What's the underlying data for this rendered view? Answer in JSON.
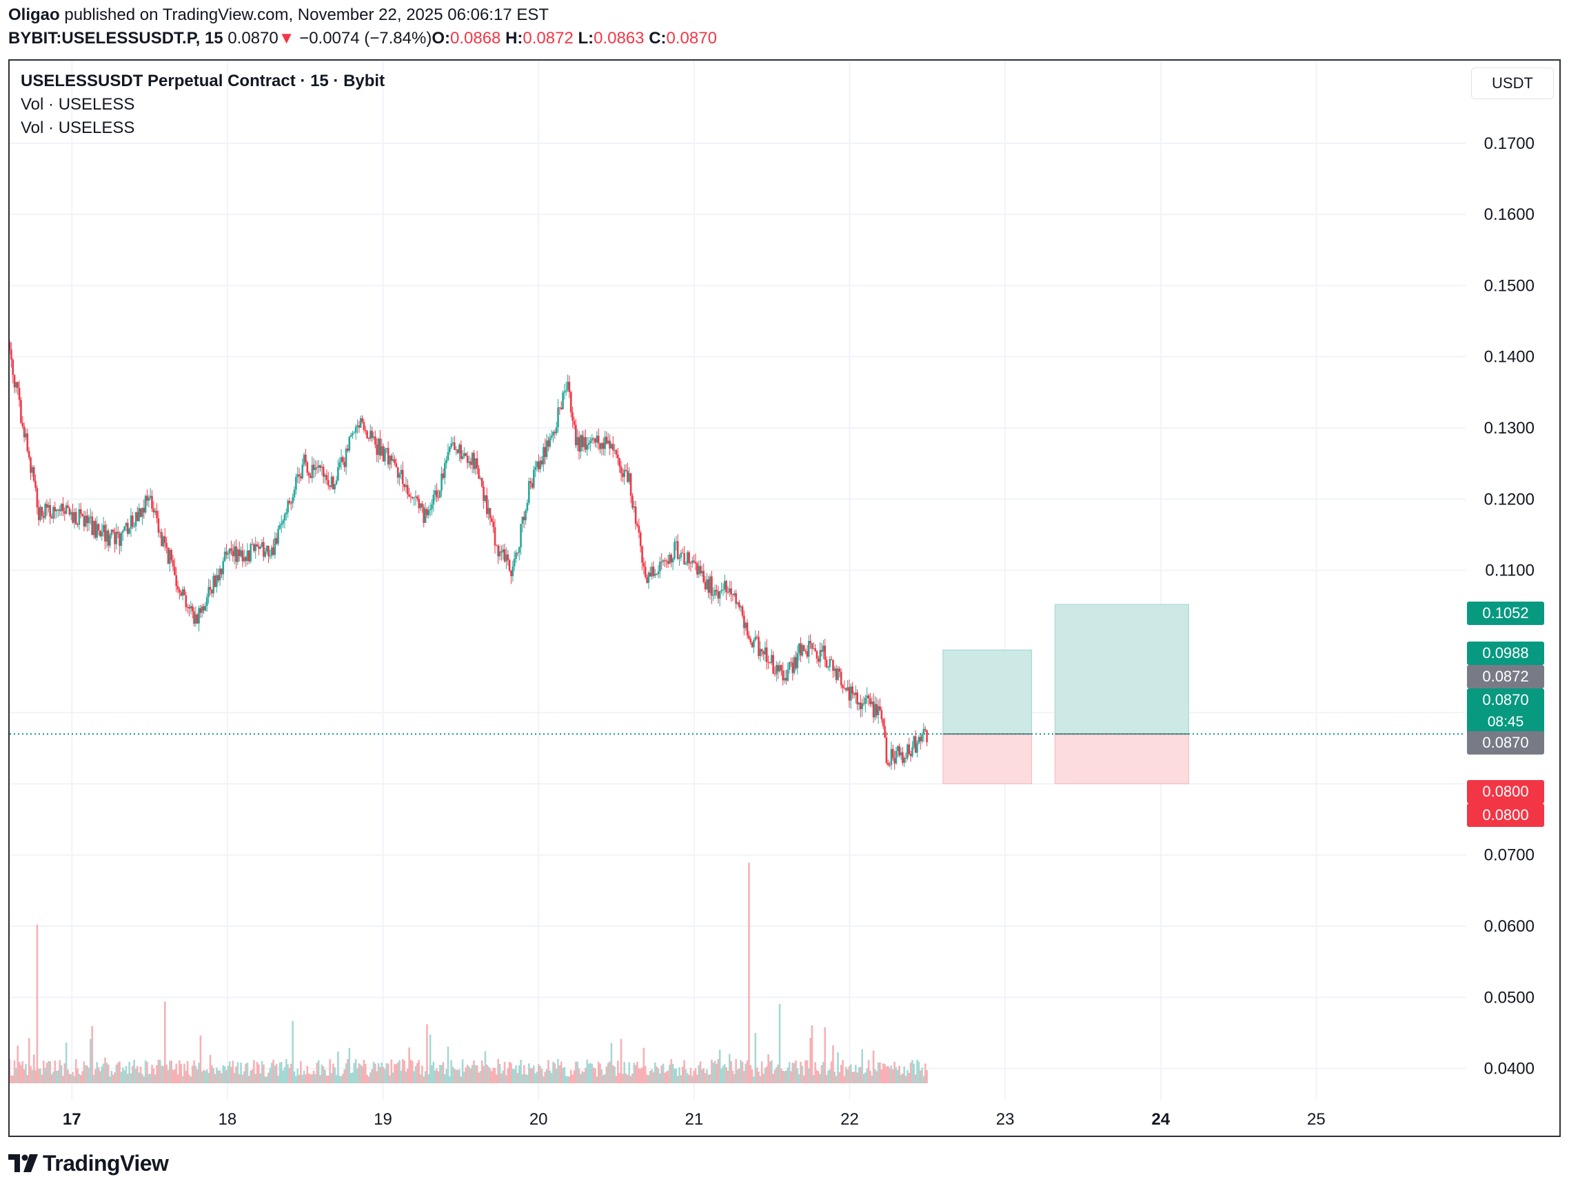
{
  "header": {
    "author": "Oligao",
    "published_text": "published on TradingView.com, November 22, 2025 06:06:17 EST",
    "symbol": "BYBIT:USELESSUSDT.P, 15",
    "last": "0.0870",
    "arrow": "▼",
    "change": "−0.0074 (−7.84%)",
    "o_label": "O:",
    "o_value": "0.0868",
    "h_label": "H:",
    "h_value": "0.0872",
    "l_label": "L:",
    "l_value": "0.0863",
    "c_label": "C:",
    "c_value": "0.0870"
  },
  "legend": {
    "title": "USELESSUSDT Perpetual Contract · 15 · Bybit",
    "vol1": "Vol · USELESS",
    "vol2": "Vol · USELESS"
  },
  "currency": "USDT",
  "price_tags": {
    "target2": "0.1052",
    "target1": "0.0988",
    "high": "0.0872",
    "last": "0.0870",
    "countdown": "08:45",
    "entry": "0.0870",
    "stop1": "0.0800",
    "stop2": "0.0800"
  },
  "colors": {
    "up": "#26a69a",
    "down": "#f23645",
    "grid": "#f0f3fa",
    "target_zone": "#cce9e6",
    "stop_zone": "#fcdcdd",
    "tag_green": "#089981",
    "tag_gray": "#787b86",
    "tag_red": "#f23645"
  },
  "brand": "TradingView",
  "chart_data": {
    "type": "candlestick",
    "title": "USELESSUSDT Perpetual Contract · 15 · Bybit",
    "interval": "15",
    "y_axis_ticks": [
      "0.1700",
      "0.1600",
      "0.1500",
      "0.1400",
      "0.1300",
      "0.1200",
      "0.1100",
      "0.0700",
      "0.0600",
      "0.0500",
      "0.0400"
    ],
    "y_range": [
      0.0356,
      0.1816
    ],
    "x_axis_ticks": [
      "17",
      "18",
      "19",
      "20",
      "21",
      "22",
      "23",
      "24",
      "25"
    ],
    "x_range_days": [
      16.6,
      25.96
    ],
    "price_path": [
      {
        "day": 16.6,
        "price": 0.142
      },
      {
        "day": 16.7,
        "price": 0.13
      },
      {
        "day": 16.8,
        "price": 0.118
      },
      {
        "day": 17.0,
        "price": 0.118
      },
      {
        "day": 17.3,
        "price": 0.114
      },
      {
        "day": 17.5,
        "price": 0.12
      },
      {
        "day": 17.7,
        "price": 0.108
      },
      {
        "day": 17.8,
        "price": 0.103
      },
      {
        "day": 18.0,
        "price": 0.112
      },
      {
        "day": 18.3,
        "price": 0.113
      },
      {
        "day": 18.5,
        "price": 0.125
      },
      {
        "day": 18.7,
        "price": 0.122
      },
      {
        "day": 18.85,
        "price": 0.131
      },
      {
        "day": 19.1,
        "price": 0.124
      },
      {
        "day": 19.3,
        "price": 0.117
      },
      {
        "day": 19.45,
        "price": 0.127
      },
      {
        "day": 19.6,
        "price": 0.125
      },
      {
        "day": 19.75,
        "price": 0.113
      },
      {
        "day": 19.85,
        "price": 0.11
      },
      {
        "day": 19.95,
        "price": 0.122
      },
      {
        "day": 20.1,
        "price": 0.129
      },
      {
        "day": 20.2,
        "price": 0.137
      },
      {
        "day": 20.25,
        "price": 0.128
      },
      {
        "day": 20.45,
        "price": 0.128
      },
      {
        "day": 20.6,
        "price": 0.122
      },
      {
        "day": 20.7,
        "price": 0.109
      },
      {
        "day": 20.9,
        "price": 0.113
      },
      {
        "day": 21.05,
        "price": 0.109
      },
      {
        "day": 21.15,
        "price": 0.107
      },
      {
        "day": 21.25,
        "price": 0.108
      },
      {
        "day": 21.35,
        "price": 0.101
      },
      {
        "day": 21.5,
        "price": 0.097
      },
      {
        "day": 21.6,
        "price": 0.095
      },
      {
        "day": 21.7,
        "price": 0.099
      },
      {
        "day": 21.85,
        "price": 0.098
      },
      {
        "day": 22.0,
        "price": 0.093
      },
      {
        "day": 22.2,
        "price": 0.09
      },
      {
        "day": 22.25,
        "price": 0.084
      },
      {
        "day": 22.35,
        "price": 0.084
      },
      {
        "day": 22.5,
        "price": 0.0869
      }
    ],
    "volume_spikes": [
      {
        "day": 16.78,
        "relative": 0.72
      },
      {
        "day": 17.6,
        "relative": 0.37
      },
      {
        "day": 21.35,
        "relative": 1.0
      },
      {
        "day": 21.55,
        "relative": 0.36
      }
    ],
    "positions": [
      {
        "type": "long",
        "start_day": 22.6,
        "end_day": 23.17,
        "entry": 0.087,
        "target": 0.0988,
        "stop": 0.08
      },
      {
        "type": "long",
        "start_day": 23.32,
        "end_day": 24.18,
        "entry": 0.087,
        "target": 0.1052,
        "stop": 0.08
      }
    ],
    "last_price": 0.087
  }
}
